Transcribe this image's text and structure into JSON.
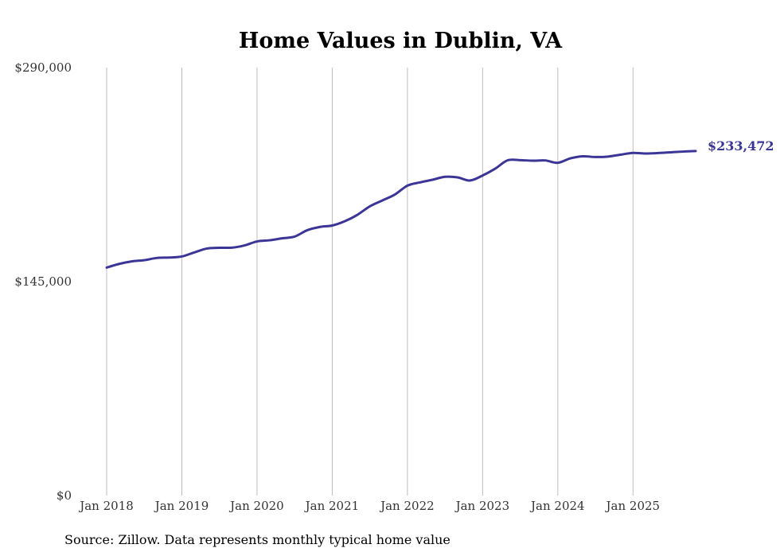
{
  "chart_data": {
    "type": "line",
    "title": "Home Values in Dublin, VA",
    "xlabel": "",
    "ylabel": "",
    "ylim": [
      0,
      290000
    ],
    "yticks": [
      {
        "value": 0,
        "label": "$0"
      },
      {
        "value": 145000,
        "label": "$145,000"
      },
      {
        "value": 290000,
        "label": "$290,000"
      }
    ],
    "xticks": [
      {
        "value": 2018,
        "label": "Jan 2018"
      },
      {
        "value": 2019,
        "label": "Jan 2019"
      },
      {
        "value": 2020,
        "label": "Jan 2020"
      },
      {
        "value": 2021,
        "label": "Jan 2021"
      },
      {
        "value": 2022,
        "label": "Jan 2022"
      },
      {
        "value": 2023,
        "label": "Jan 2023"
      },
      {
        "value": 2024,
        "label": "Jan 2024"
      },
      {
        "value": 2025,
        "label": "Jan 2025"
      }
    ],
    "xlim": [
      2018,
      2025.833
    ],
    "grid": "vertical",
    "series": [
      {
        "name": "Typical home value",
        "color": "#3b3596",
        "points": [
          [
            2018.0,
            154500
          ],
          [
            2018.167,
            157000
          ],
          [
            2018.333,
            158700
          ],
          [
            2018.5,
            159500
          ],
          [
            2018.667,
            161000
          ],
          [
            2018.833,
            161300
          ],
          [
            2019.0,
            162000
          ],
          [
            2019.167,
            164800
          ],
          [
            2019.333,
            167400
          ],
          [
            2019.5,
            167900
          ],
          [
            2019.667,
            168000
          ],
          [
            2019.833,
            169500
          ],
          [
            2020.0,
            172200
          ],
          [
            2020.167,
            173000
          ],
          [
            2020.333,
            174300
          ],
          [
            2020.5,
            175500
          ],
          [
            2020.667,
            179800
          ],
          [
            2020.833,
            182000
          ],
          [
            2021.0,
            183000
          ],
          [
            2021.167,
            185900
          ],
          [
            2021.333,
            190200
          ],
          [
            2021.5,
            196000
          ],
          [
            2021.667,
            200000
          ],
          [
            2021.833,
            204000
          ],
          [
            2022.0,
            210000
          ],
          [
            2022.167,
            212200
          ],
          [
            2022.333,
            214000
          ],
          [
            2022.5,
            216000
          ],
          [
            2022.667,
            215600
          ],
          [
            2022.833,
            213500
          ],
          [
            2023.0,
            216900
          ],
          [
            2023.167,
            221500
          ],
          [
            2023.333,
            227200
          ],
          [
            2023.5,
            227300
          ],
          [
            2023.667,
            226900
          ],
          [
            2023.833,
            227100
          ],
          [
            2024.0,
            225500
          ],
          [
            2024.167,
            228500
          ],
          [
            2024.333,
            229900
          ],
          [
            2024.5,
            229400
          ],
          [
            2024.667,
            229700
          ],
          [
            2024.833,
            231000
          ],
          [
            2025.0,
            232200
          ],
          [
            2025.167,
            231800
          ],
          [
            2025.333,
            232100
          ],
          [
            2025.5,
            232600
          ],
          [
            2025.667,
            233100
          ],
          [
            2025.833,
            233472
          ]
        ]
      }
    ],
    "end_label": "$233,472",
    "source": "Source: Zillow. Data represents monthly typical home value"
  }
}
